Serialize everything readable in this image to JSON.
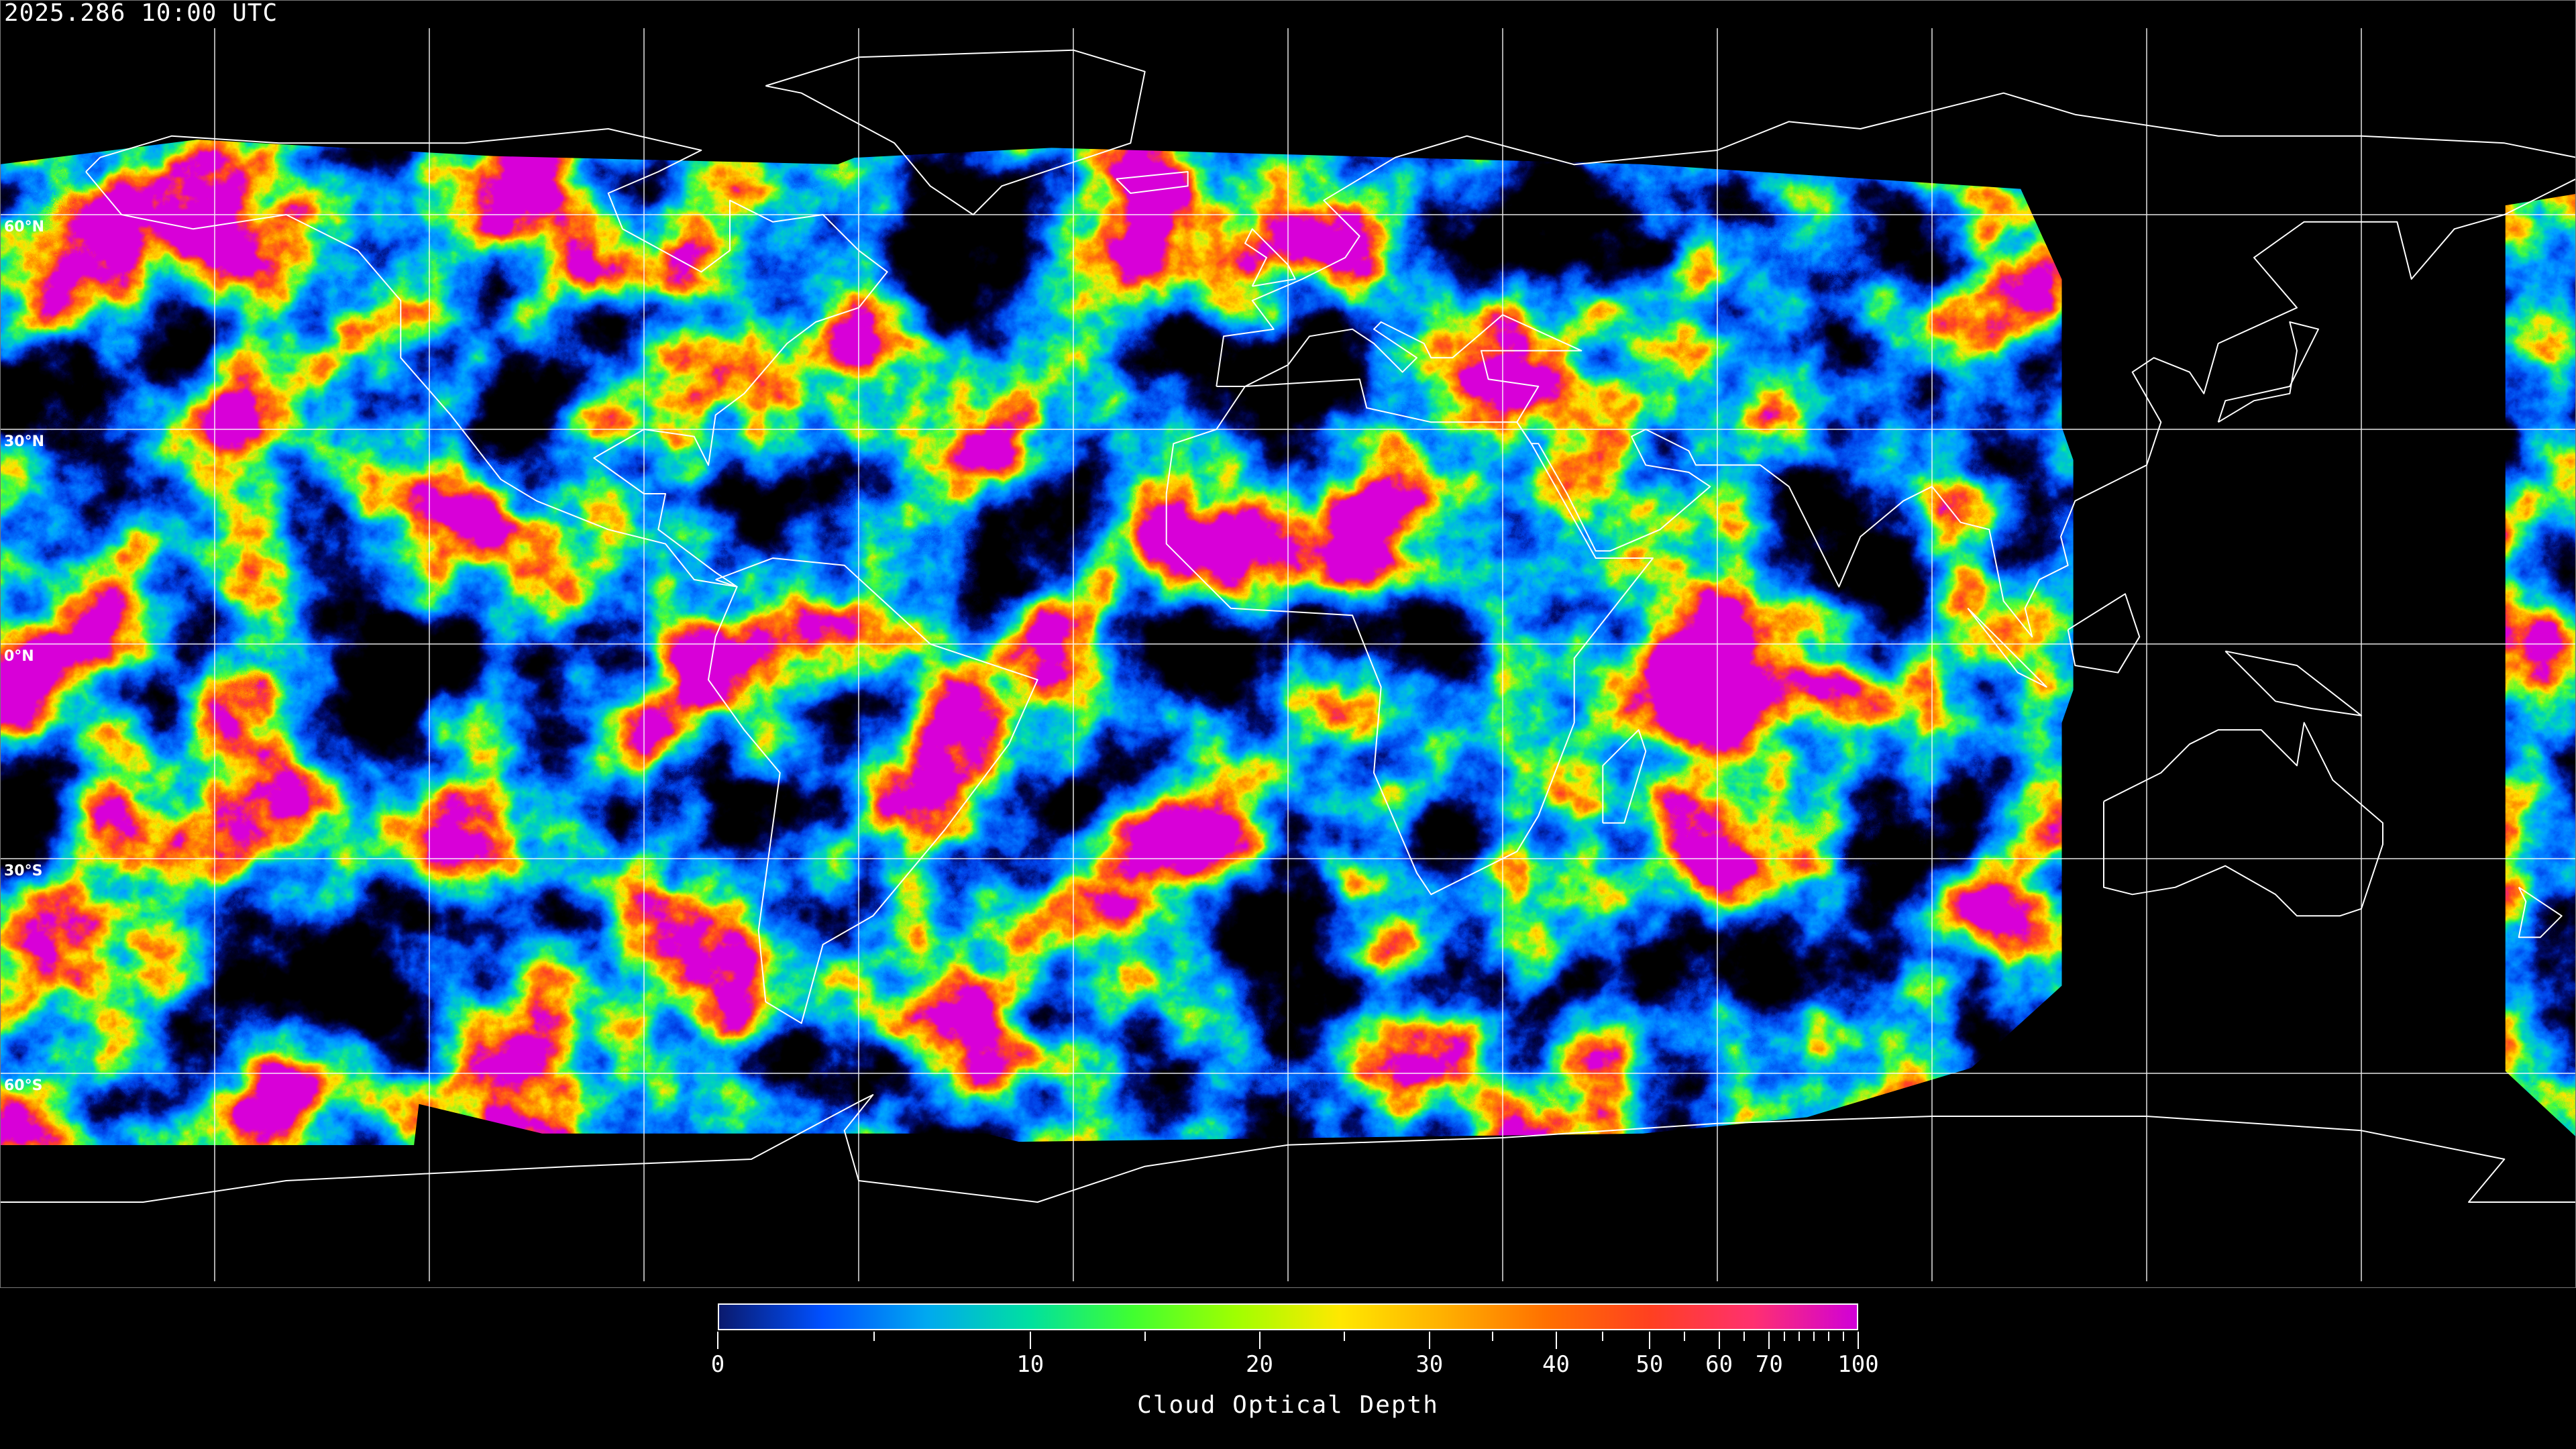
{
  "header": {
    "timestamp": "2025.286 10:00 UTC"
  },
  "map": {
    "projection": "equirectangular",
    "latitude_labels": [
      "60°N",
      "30°N",
      "0°N",
      "30°S",
      "60°S"
    ],
    "gridline_color": "#ffffff",
    "coastline_color": "#ffffff",
    "background_color": "#000000"
  },
  "colorbar": {
    "title": "Cloud Optical Depth",
    "min": 0,
    "max": 100,
    "major_ticks": [
      "0",
      "10",
      "20",
      "30",
      "40",
      "50",
      "60",
      "70",
      "100"
    ],
    "minor_ticks": [
      5,
      15,
      25,
      35,
      45,
      55,
      65,
      75,
      80,
      85,
      90,
      95
    ],
    "colors": [
      "#0a1a6e",
      "#0050ff",
      "#00a8f0",
      "#00e0a0",
      "#40ff30",
      "#a0ff00",
      "#ffe800",
      "#ffb000",
      "#ff7000",
      "#ff4020",
      "#ff3070",
      "#d000d8"
    ]
  }
}
